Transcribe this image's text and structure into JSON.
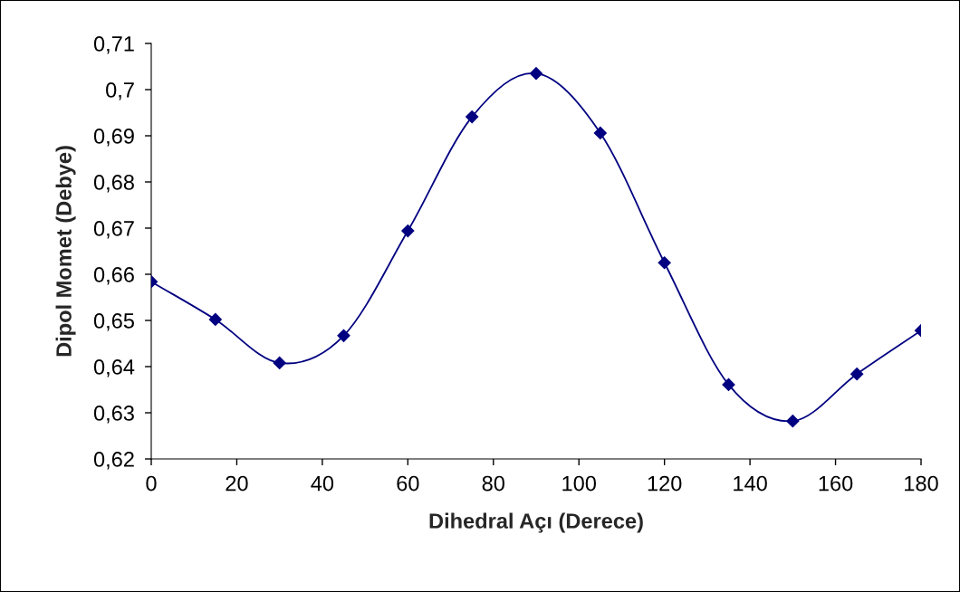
{
  "chart_data": {
    "type": "line",
    "xlabel": "Dihedral Açı (Derece)",
    "ylabel": "Dipol Momet (Debye)",
    "x": [
      0,
      15,
      30,
      45,
      60,
      75,
      90,
      105,
      120,
      135,
      150,
      165,
      180
    ],
    "series": [
      {
        "color": "#000080",
        "values": [
          0.6584,
          0.6502,
          0.6408,
          0.6467,
          0.6694,
          0.6941,
          0.7035,
          0.6906,
          0.6625,
          0.6361,
          0.6282,
          0.6384,
          0.6478
        ]
      }
    ],
    "xlim": [
      0,
      180
    ],
    "xticks": [
      0,
      20,
      40,
      60,
      80,
      100,
      120,
      140,
      160,
      180
    ],
    "ylim": [
      0.62,
      0.71
    ],
    "yticks": [
      {
        "value": 0.62,
        "label": "0,62"
      },
      {
        "value": 0.63,
        "label": "0,63"
      },
      {
        "value": 0.64,
        "label": "0,64"
      },
      {
        "value": 0.65,
        "label": "0,65"
      },
      {
        "value": 0.66,
        "label": "0,66"
      },
      {
        "value": 0.67,
        "label": "0,67"
      },
      {
        "value": 0.68,
        "label": "0,68"
      },
      {
        "value": 0.69,
        "label": "0,69"
      },
      {
        "value": 0.7,
        "label": "0,7"
      },
      {
        "value": 0.71,
        "label": "0,71"
      }
    ],
    "marker": "diamond",
    "line_style": "solid",
    "grid": false,
    "legend": false
  }
}
